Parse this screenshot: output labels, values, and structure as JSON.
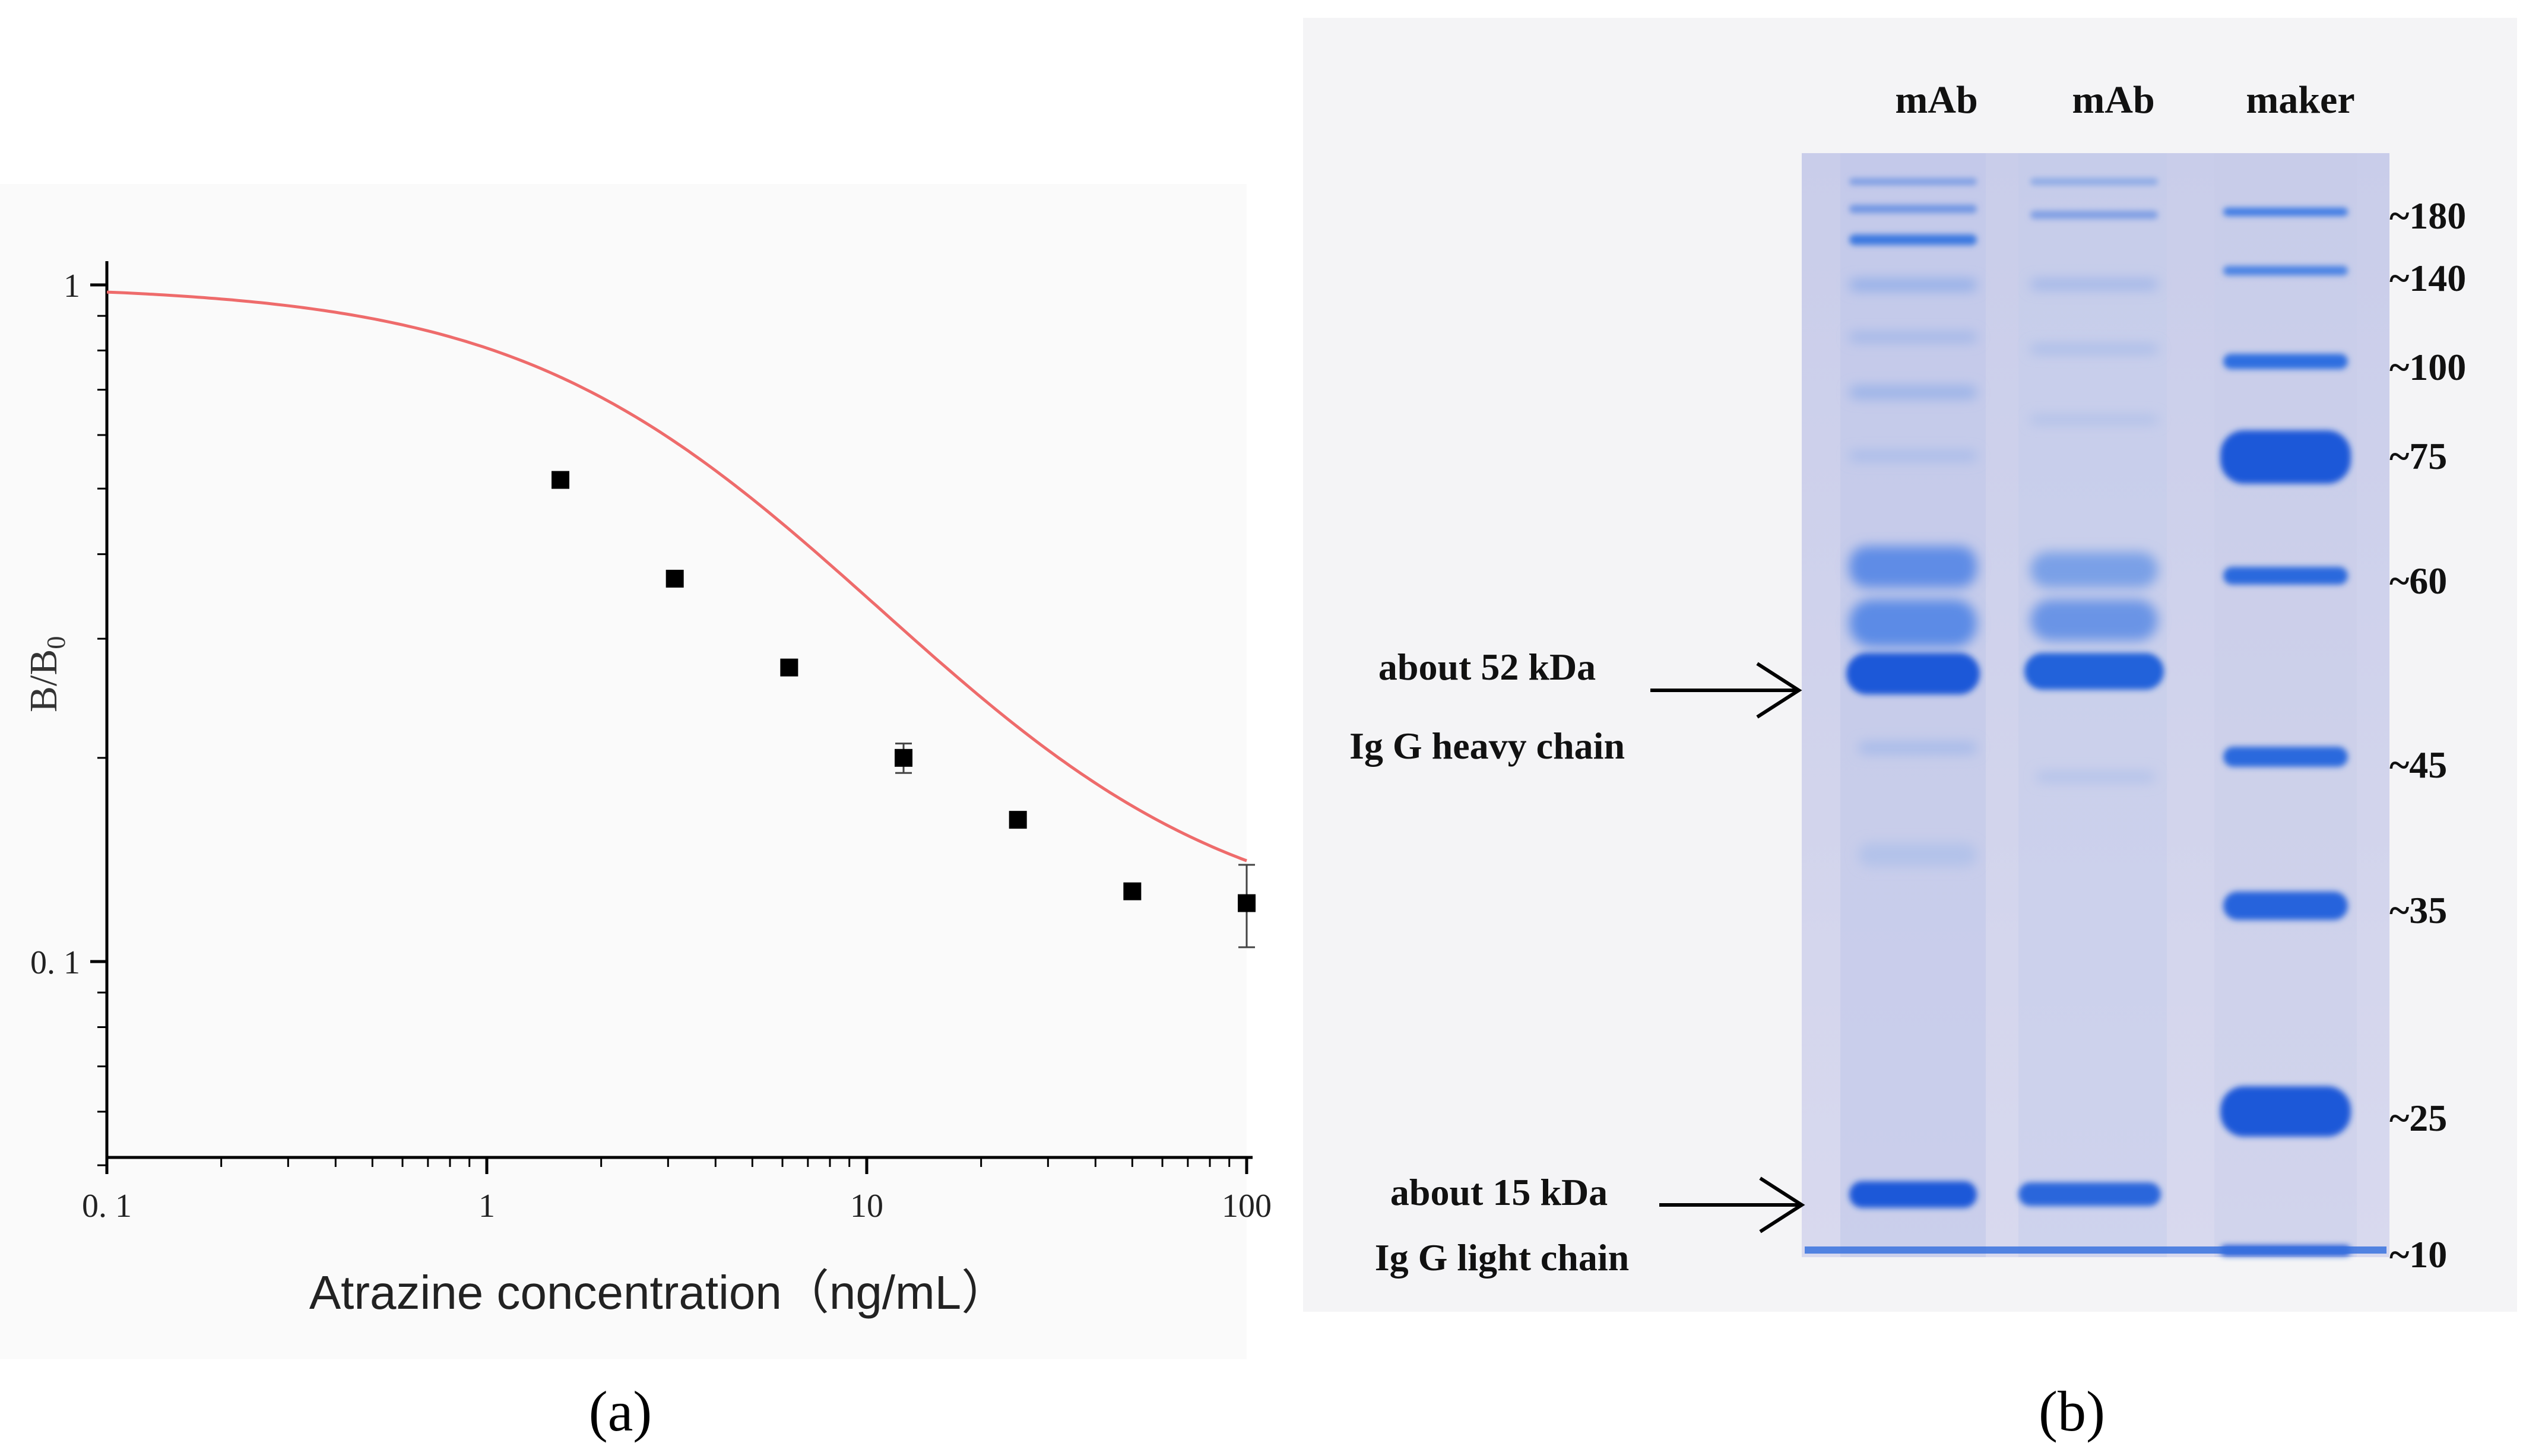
{
  "figure": {
    "panel_a_label": "(a)",
    "panel_b_label": "(b)"
  },
  "chart_data": {
    "type": "scatter",
    "title": "",
    "xlabel": "Atrazine concentration（ng/mL）",
    "ylabel_main": "B/B",
    "ylabel_sub": "0",
    "x_scale": "log",
    "y_scale": "log",
    "xlim": [
      0.1,
      100
    ],
    "ylim": [
      0.05,
      1.1
    ],
    "x_ticks": [
      {
        "value": 0.1,
        "label": "0. 1"
      },
      {
        "value": 1,
        "label": "1"
      },
      {
        "value": 10,
        "label": "10"
      },
      {
        "value": 100,
        "label": "100"
      }
    ],
    "y_ticks": [
      {
        "value": 1,
        "label": "1"
      },
      {
        "value": 0.1,
        "label": "0. 1"
      }
    ],
    "series": [
      {
        "kind": "points",
        "x": [
          1.5625,
          3.125,
          6.25,
          12.5,
          25,
          50,
          100
        ],
        "y": [
          0.515,
          0.368,
          0.272,
          0.2,
          0.162,
          0.127,
          0.122
        ],
        "y_err": [
          0,
          0,
          0,
          0.01,
          0,
          0,
          0.017
        ],
        "color": "#000000"
      },
      {
        "kind": "fit",
        "model": "four-parameter logistic",
        "top": 1.0,
        "bottom": 0.11,
        "ic50": 3.6,
        "hill": 1.0,
        "color": "#ee6b6b"
      }
    ],
    "grid": false,
    "legend": "none"
  },
  "gel": {
    "lane_labels": [
      "mAb",
      "mAb",
      "maker"
    ],
    "marker_labels": [
      "~180",
      "~140",
      "~100",
      "~75",
      "~60",
      "~45",
      "~35",
      "~25",
      "~10"
    ],
    "annotations": [
      {
        "line1": "about 52 kDa",
        "line2": "Ig G heavy chain"
      },
      {
        "line1": "about 15 kDa",
        "line2": "Ig G light chain"
      }
    ],
    "colors": {
      "background": "#cdd1ea",
      "band": "#1f58d8",
      "band_light": "#8aa5ea"
    }
  }
}
